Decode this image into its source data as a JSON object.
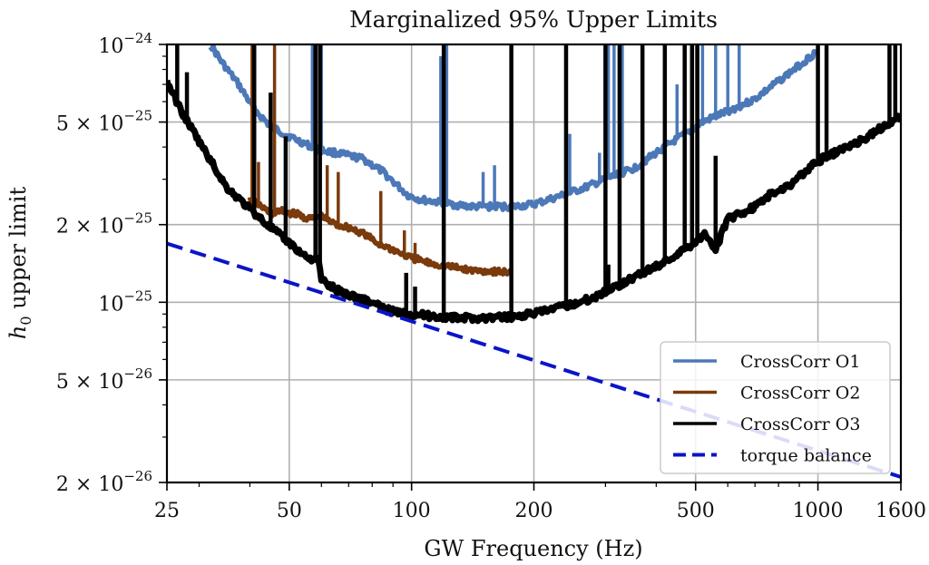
{
  "chart_data": {
    "type": "line",
    "title": "Marginalized 95% Upper Limits",
    "xlabel": "GW Frequency (Hz)",
    "ylabel_main": "h",
    "ylabel_sub": "0",
    "ylabel_rest": " upper limit",
    "xscale": "log",
    "yscale": "log",
    "xlim": [
      25,
      1600
    ],
    "ylim": [
      2e-26,
      1e-24
    ],
    "grid": true,
    "legend_position": "lower-right",
    "x_ticks": [
      {
        "value": 25,
        "label": "25"
      },
      {
        "value": 50,
        "label": "50"
      },
      {
        "value": 100,
        "label": "100"
      },
      {
        "value": 200,
        "label": "200"
      },
      {
        "value": 500,
        "label": "500"
      },
      {
        "value": 1000,
        "label": "1000"
      },
      {
        "value": 1600,
        "label": "1600"
      }
    ],
    "y_ticks": [
      {
        "value": 1e-24,
        "mant": "",
        "exp": "−24"
      },
      {
        "value": 5e-25,
        "mant": "5 × ",
        "exp": "−25"
      },
      {
        "value": 2e-25,
        "mant": "2 × ",
        "exp": "−25"
      },
      {
        "value": 1e-25,
        "mant": "",
        "exp": "−25"
      },
      {
        "value": 5e-26,
        "mant": "5 × ",
        "exp": "−26"
      },
      {
        "value": 2e-26,
        "mant": "2 × ",
        "exp": "−26"
      }
    ],
    "series": [
      {
        "name": "CrossCorr O1",
        "color": "#4c78b8",
        "style": "solid",
        "x": [
          32,
          34,
          37.5,
          41,
          45,
          50,
          55,
          59,
          65,
          70,
          76,
          85,
          92,
          98,
          105,
          115,
          125,
          140,
          160,
          180,
          200,
          236,
          270,
          300,
          352,
          400,
          440,
          485,
          520,
          600,
          695,
          800,
          900,
          993
        ],
        "y": [
          1e-24,
          8.6e-25,
          7e-25,
          5.6e-25,
          4.8e-25,
          4.4e-25,
          4.1e-25,
          3.9e-25,
          3.8e-25,
          3.7e-25,
          3.6e-25,
          3.2e-25,
          2.85e-25,
          2.6e-25,
          2.5e-25,
          2.45e-25,
          2.4e-25,
          2.35e-25,
          2.35e-25,
          2.35e-25,
          2.4e-25,
          2.6e-25,
          2.8e-25,
          3e-25,
          3.3e-25,
          3.8e-25,
          4.2e-25,
          4.6e-25,
          5e-25,
          5.5e-25,
          6.1e-25,
          7.2e-25,
          8.3e-25,
          9.4e-25
        ],
        "spikes": [
          [
            57,
            1e-24
          ],
          [
            60,
            1e-24
          ],
          [
            118,
            9e-25
          ],
          [
            122,
            1e-24
          ],
          [
            150,
            3.2e-25
          ],
          [
            160,
            3.4e-25
          ],
          [
            245,
            4.5e-25
          ],
          [
            290,
            3.8e-25
          ],
          [
            305,
            1e-24
          ],
          [
            315,
            1e-24
          ],
          [
            330,
            1e-24
          ],
          [
            450,
            7e-25
          ],
          [
            520,
            1e-24
          ],
          [
            560,
            1e-24
          ],
          [
            600,
            1e-24
          ],
          [
            640,
            1e-24
          ]
        ]
      },
      {
        "name": "CrossCorr O2",
        "color": "#7a3a0c",
        "style": "solid",
        "x": [
          40,
          42,
          45,
          48,
          52,
          56,
          60,
          65,
          70,
          76,
          82,
          90,
          98,
          110,
          125,
          140,
          160,
          176
        ],
        "y": [
          2.5e-25,
          2.4e-25,
          2.2e-25,
          2.25e-25,
          2.2e-25,
          2.1e-25,
          2.15e-25,
          2e-25,
          1.95e-25,
          1.85e-25,
          1.7e-25,
          1.6e-25,
          1.5e-25,
          1.42e-25,
          1.37e-25,
          1.33e-25,
          1.32e-25,
          1.3e-25
        ],
        "spikes": [
          [
            40.5,
            1e-24
          ],
          [
            42,
            3.5e-25
          ],
          [
            46,
            1e-24
          ],
          [
            59.5,
            1e-24
          ],
          [
            62,
            3.4e-25
          ],
          [
            66,
            3.2e-25
          ],
          [
            84,
            2.7e-25
          ],
          [
            96,
            1.9e-25
          ],
          [
            102,
            1.7e-25
          ],
          [
            176,
            1.45e-25
          ]
        ]
      },
      {
        "name": "CrossCorr O3",
        "color": "#000000",
        "style": "solid",
        "x": [
          25,
          27,
          30,
          35,
          40,
          45,
          50,
          55,
          59,
          60,
          65,
          70,
          76,
          85,
          92,
          100,
          115,
          128,
          150,
          180,
          211,
          240,
          275,
          300,
          352,
          400,
          440,
          485,
          530,
          560,
          600,
          700,
          760,
          850,
          993,
          1100,
          1300,
          1600
        ],
        "y": [
          7.2e-25,
          5.6e-25,
          4.2e-25,
          2.8e-25,
          2.3e-25,
          1.95e-25,
          1.7e-25,
          1.5e-25,
          1.45e-25,
          1.22e-25,
          1.12e-25,
          1.07e-25,
          1.03e-25,
          9.5e-26,
          9.1e-26,
          9e-26,
          8.8e-26,
          8.7e-26,
          8.7e-26,
          8.8e-26,
          9.2e-26,
          9.7e-26,
          1.03e-25,
          1.1e-25,
          1.25e-25,
          1.38e-25,
          1.5e-25,
          1.66e-25,
          1.85e-25,
          1.6e-25,
          2.1e-25,
          2.35e-25,
          2.6e-25,
          2.85e-25,
          3.5e-25,
          3.8e-25,
          4.3e-25,
          5.3e-25
        ],
        "spikes": [
          [
            26.5,
            1e-24
          ],
          [
            28,
            7.8e-25
          ],
          [
            41,
            1e-24
          ],
          [
            45,
            6.5e-25
          ],
          [
            49,
            4.4e-25
          ],
          [
            58,
            1e-24
          ],
          [
            59.5,
            1e-24
          ],
          [
            97,
            1.3e-25
          ],
          [
            102,
            1.15e-25
          ],
          [
            120,
            1e-24
          ],
          [
            176,
            1e-24
          ],
          [
            240,
            1e-24
          ],
          [
            300,
            1e-24
          ],
          [
            305,
            1.4e-25
          ],
          [
            325,
            1e-24
          ],
          [
            370,
            1e-24
          ],
          [
            420,
            1e-24
          ],
          [
            470,
            1e-24
          ],
          [
            490,
            1e-24
          ],
          [
            505,
            1e-24
          ],
          [
            560,
            3.7e-25
          ],
          [
            1000,
            1e-24
          ],
          [
            1050,
            1e-24
          ],
          [
            1500,
            1e-24
          ],
          [
            1550,
            1e-24
          ]
        ]
      },
      {
        "name": "torque balance",
        "color": "#0a14c8",
        "style": "dashed",
        "x": [
          25,
          1600
        ],
        "y": [
          1.69e-25,
          2.1e-26
        ]
      }
    ]
  }
}
